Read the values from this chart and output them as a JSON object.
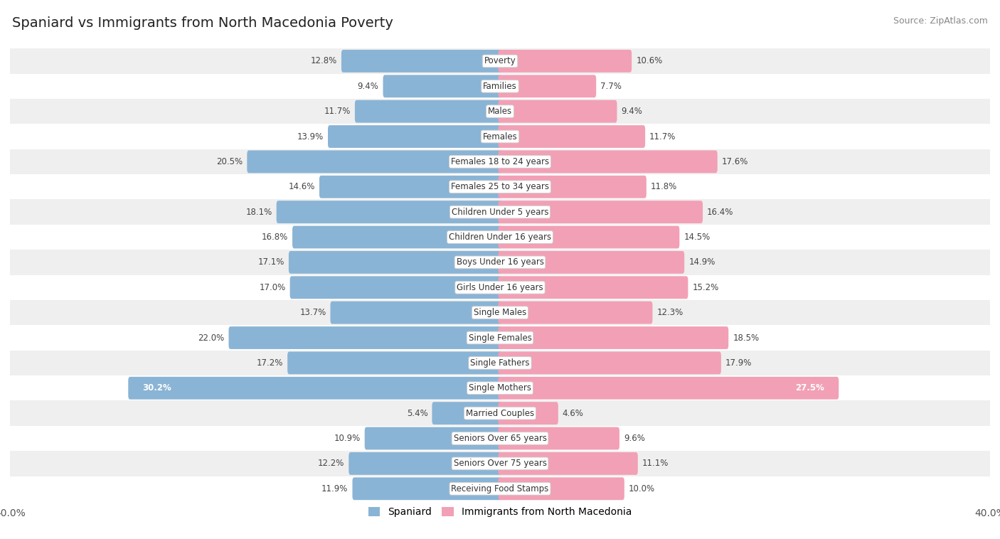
{
  "title": "Spaniard vs Immigrants from North Macedonia Poverty",
  "source": "Source: ZipAtlas.com",
  "categories": [
    "Poverty",
    "Families",
    "Males",
    "Females",
    "Females 18 to 24 years",
    "Females 25 to 34 years",
    "Children Under 5 years",
    "Children Under 16 years",
    "Boys Under 16 years",
    "Girls Under 16 years",
    "Single Males",
    "Single Females",
    "Single Fathers",
    "Single Mothers",
    "Married Couples",
    "Seniors Over 65 years",
    "Seniors Over 75 years",
    "Receiving Food Stamps"
  ],
  "spaniard": [
    12.8,
    9.4,
    11.7,
    13.9,
    20.5,
    14.6,
    18.1,
    16.8,
    17.1,
    17.0,
    13.7,
    22.0,
    17.2,
    30.2,
    5.4,
    10.9,
    12.2,
    11.9
  ],
  "immigrants": [
    10.6,
    7.7,
    9.4,
    11.7,
    17.6,
    11.8,
    16.4,
    14.5,
    14.9,
    15.2,
    12.3,
    18.5,
    17.9,
    27.5,
    4.6,
    9.6,
    11.1,
    10.0
  ],
  "spaniard_color": "#8ab4d5",
  "immigrant_color": "#f2a0b5",
  "bar_height": 0.6,
  "xlim": 40.0,
  "bg_row_color": "#efefef",
  "bg_alt_color": "#ffffff",
  "highlight_threshold": 25.0,
  "legend_label_1": "Spaniard",
  "legend_label_2": "Immigrants from North Macedonia"
}
